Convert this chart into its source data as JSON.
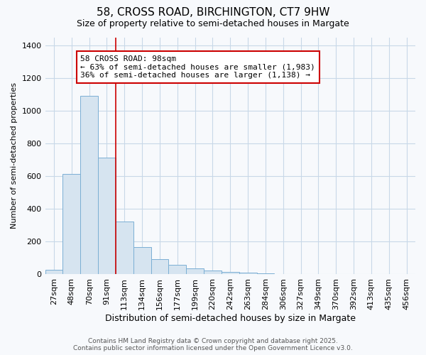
{
  "title1": "58, CROSS ROAD, BIRCHINGTON, CT7 9HW",
  "title2": "Size of property relative to semi-detached houses in Margate",
  "xlabel": "Distribution of semi-detached houses by size in Margate",
  "ylabel": "Number of semi-detached properties",
  "categories": [
    "27sqm",
    "48sqm",
    "70sqm",
    "91sqm",
    "113sqm",
    "134sqm",
    "156sqm",
    "177sqm",
    "199sqm",
    "220sqm",
    "242sqm",
    "263sqm",
    "284sqm",
    "306sqm",
    "327sqm",
    "349sqm",
    "370sqm",
    "392sqm",
    "413sqm",
    "435sqm",
    "456sqm"
  ],
  "values": [
    30,
    615,
    1090,
    715,
    325,
    165,
    95,
    60,
    35,
    25,
    15,
    10,
    5,
    0,
    0,
    0,
    0,
    0,
    0,
    0,
    0
  ],
  "bar_color": "#d6e4f0",
  "bar_edge_color": "#7bafd4",
  "red_line_index": 3.5,
  "annotation_line1": "58 CROSS ROAD: 98sqm",
  "annotation_line2": "← 63% of semi-detached houses are smaller (1,983)",
  "annotation_line3": "36% of semi-detached houses are larger (1,138) →",
  "annotation_box_facecolor": "#ffffff",
  "annotation_box_edgecolor": "#cc0000",
  "red_line_color": "#cc0000",
  "ylim": [
    0,
    1450
  ],
  "yticks": [
    0,
    200,
    400,
    600,
    800,
    1000,
    1200,
    1400
  ],
  "footer_line1": "Contains HM Land Registry data © Crown copyright and database right 2025.",
  "footer_line2": "Contains public sector information licensed under the Open Government Licence v3.0.",
  "background_color": "#f7f9fc",
  "plot_bg_color": "#f7f9fc",
  "grid_color": "#c8d8e8",
  "title1_fontsize": 11,
  "title2_fontsize": 9,
  "xlabel_fontsize": 9,
  "ylabel_fontsize": 8,
  "tick_fontsize": 8,
  "annotation_fontsize": 8,
  "footer_fontsize": 6.5
}
